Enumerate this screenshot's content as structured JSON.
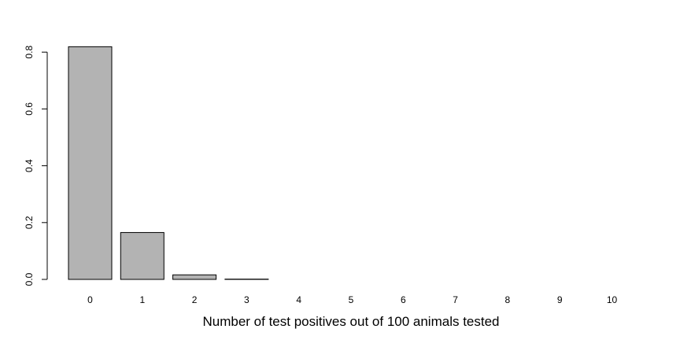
{
  "chart_data": {
    "type": "bar",
    "title": "",
    "xlabel": "Number of test positives out of 100 animals tested",
    "ylabel": "",
    "categories": [
      "0",
      "1",
      "2",
      "3",
      "4",
      "5",
      "6",
      "7",
      "8",
      "9",
      "10"
    ],
    "values": [
      0.819,
      0.165,
      0.016,
      0.001,
      0.0,
      0.0,
      0.0,
      0.0,
      0.0,
      0.0,
      0.0
    ],
    "ylim": [
      0,
      0.82
    ],
    "yticks": [
      0.0,
      0.2,
      0.4,
      0.6,
      0.8
    ],
    "ytick_labels": [
      "0.0",
      "0.2",
      "0.4",
      "0.6",
      "0.8"
    ],
    "grid": false,
    "legend": "none",
    "colors": {
      "bar_fill": "#b3b3b3",
      "bar_stroke": "#000000",
      "axis": "#000000"
    }
  }
}
